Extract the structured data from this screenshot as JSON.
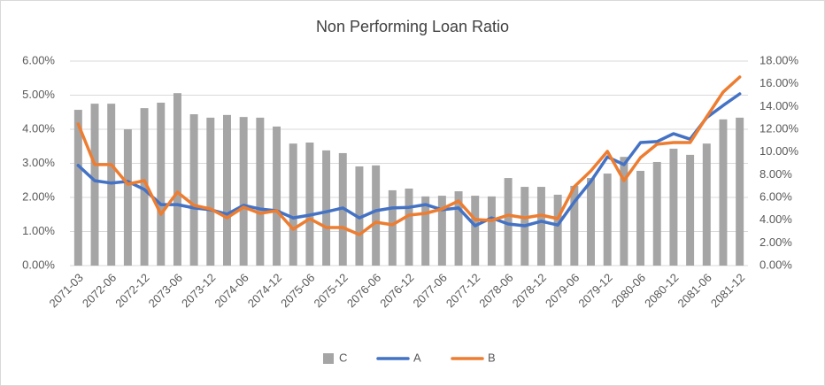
{
  "chart_data": {
    "type": "combo",
    "title": "Non Performing Loan Ratio",
    "categories": [
      "2071-03",
      null,
      "2072-06",
      null,
      "2072-12",
      null,
      "2073-06",
      null,
      "2073-12",
      null,
      "2074-06",
      null,
      "2074-12",
      null,
      "2075-06",
      null,
      "2075-12",
      null,
      "2076-06",
      null,
      "2076-12",
      null,
      "2077-06",
      null,
      "2077-12",
      null,
      "2078-06",
      null,
      "2078-12",
      null,
      "2079-06",
      null,
      "2079-12",
      null,
      "2080-06",
      null,
      "2080-12",
      null,
      "2081-06",
      null,
      "2081-12"
    ],
    "series": [
      {
        "name": "C",
        "type": "bar",
        "color": "#a5a5a5",
        "axis": "y",
        "values": [
          4.57,
          4.75,
          4.75,
          4.0,
          4.62,
          4.78,
          5.06,
          4.44,
          4.34,
          4.42,
          4.36,
          4.34,
          4.08,
          3.58,
          3.61,
          3.38,
          3.3,
          2.91,
          2.94,
          2.21,
          2.26,
          2.03,
          2.05,
          2.18,
          2.05,
          2.03,
          2.57,
          2.31,
          2.31,
          2.08,
          2.34,
          2.57,
          2.7,
          3.19,
          2.78,
          3.04,
          3.43,
          3.25,
          3.58,
          4.29,
          4.34
        ]
      },
      {
        "name": "A",
        "type": "line",
        "color": "#4472c4",
        "axis": "y",
        "values": [
          2.94,
          2.49,
          2.42,
          2.47,
          2.23,
          1.79,
          1.79,
          1.69,
          1.64,
          1.51,
          1.77,
          1.66,
          1.61,
          1.4,
          1.48,
          1.58,
          1.69,
          1.4,
          1.61,
          1.69,
          1.71,
          1.79,
          1.64,
          1.69,
          1.17,
          1.4,
          1.22,
          1.17,
          1.3,
          1.19,
          1.87,
          2.47,
          3.19,
          2.96,
          3.61,
          3.64,
          3.87,
          3.71,
          4.34,
          4.7,
          5.04
        ]
      },
      {
        "name": "B",
        "type": "line",
        "color": "#ed7d31",
        "axis": "y2",
        "values": [
          12.47,
          8.89,
          8.89,
          7.17,
          7.48,
          4.52,
          6.47,
          5.3,
          4.99,
          4.21,
          5.14,
          4.6,
          4.83,
          3.2,
          4.13,
          3.35,
          3.35,
          2.73,
          3.82,
          3.59,
          4.44,
          4.6,
          4.99,
          5.69,
          4.05,
          3.98,
          4.44,
          4.21,
          4.44,
          4.13,
          6.94,
          8.34,
          10.05,
          7.48,
          9.51,
          10.68,
          10.83,
          10.83,
          13.09,
          15.28,
          16.6
        ]
      }
    ],
    "ylim": [
      0,
      6
    ],
    "yticks": [
      {
        "value": 0,
        "label": "0.00%"
      },
      {
        "value": 1,
        "label": "1.00%"
      },
      {
        "value": 2,
        "label": "2.00%"
      },
      {
        "value": 3,
        "label": "3.00%"
      },
      {
        "value": 4,
        "label": "4.00%"
      },
      {
        "value": 5,
        "label": "5.00%"
      },
      {
        "value": 6,
        "label": "6.00%"
      }
    ],
    "y2lim": [
      0,
      18
    ],
    "y2ticks": [
      {
        "value": 0,
        "label": "0.00%"
      },
      {
        "value": 2,
        "label": "2.00%"
      },
      {
        "value": 4,
        "label": "4.00%"
      },
      {
        "value": 6,
        "label": "6.00%"
      },
      {
        "value": 8,
        "label": "8.00%"
      },
      {
        "value": 10,
        "label": "10.00%"
      },
      {
        "value": 12,
        "label": "12.00%"
      },
      {
        "value": 14,
        "label": "14.00%"
      },
      {
        "value": 16,
        "label": "16.00%"
      },
      {
        "value": 18,
        "label": "18.00%"
      }
    ],
    "grid": true,
    "legend": "bottom"
  }
}
